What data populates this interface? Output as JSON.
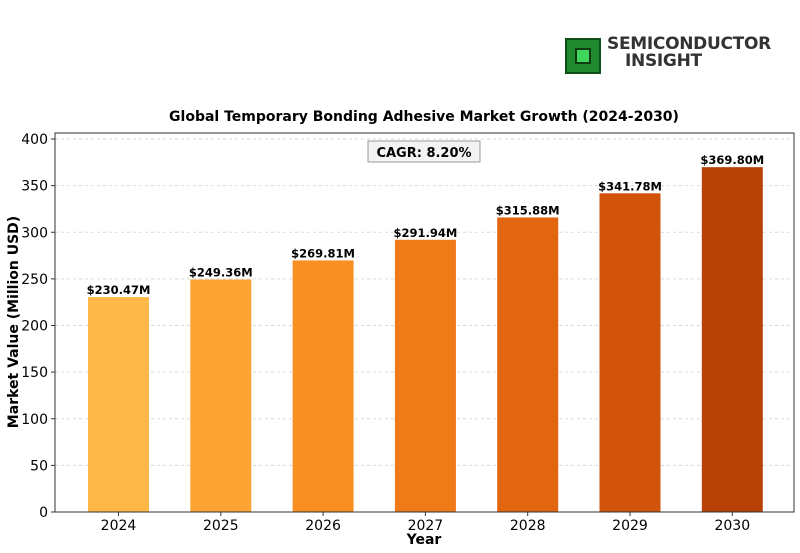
{
  "logo": {
    "line1": "SEMICONDUCTOR",
    "line2": "INSIGHT"
  },
  "chart_data": {
    "type": "bar",
    "title": "Global Temporary Bonding Adhesive Market Growth (2024-2030)",
    "xlabel": "Year",
    "ylabel": "Market Value (Million USD)",
    "annotation": "CAGR: 8.20%",
    "categories": [
      "2024",
      "2025",
      "2026",
      "2027",
      "2028",
      "2029",
      "2030"
    ],
    "values": [
      230.47,
      249.36,
      269.81,
      291.94,
      315.88,
      341.78,
      369.8
    ],
    "data_labels": [
      "$230.47M",
      "$249.36M",
      "$269.81M",
      "$291.94M",
      "$315.88M",
      "$341.78M",
      "$369.80M"
    ],
    "ylim": [
      0,
      400
    ],
    "yticks": [
      0,
      50,
      100,
      150,
      200,
      250,
      300,
      350,
      400
    ],
    "grid": true,
    "colors": [
      "#fdb847",
      "#fba433",
      "#f78f22",
      "#ee7a18",
      "#e2660f",
      "#d2530a",
      "#b84205"
    ]
  }
}
